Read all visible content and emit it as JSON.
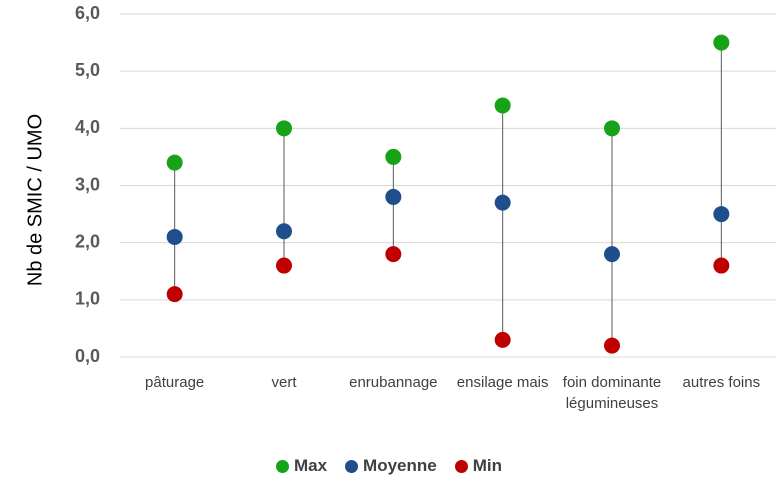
{
  "chart_data": {
    "type": "dot",
    "y_label": "Nb de SMIC / UMO",
    "categories": [
      "pâturage",
      "vert",
      "enrubannage",
      "ensilage mais",
      "foin dominante légumineuses",
      "autres foins"
    ],
    "series": [
      {
        "name": "Max",
        "color": "#17a317",
        "values": [
          3.4,
          4.0,
          3.5,
          4.4,
          4.0,
          5.5
        ]
      },
      {
        "name": "Moyenne",
        "color": "#1f4e8c",
        "values": [
          2.1,
          2.2,
          2.8,
          2.7,
          1.8,
          2.5
        ]
      },
      {
        "name": "Min",
        "color": "#c00000",
        "values": [
          1.1,
          1.6,
          1.8,
          0.3,
          0.2,
          1.6
        ]
      }
    ],
    "ylim": [
      0,
      6
    ],
    "yticks": [
      {
        "value": 0,
        "label": "0,0"
      },
      {
        "value": 1,
        "label": "1,0"
      },
      {
        "value": 2,
        "label": "2,0"
      },
      {
        "value": 3,
        "label": "3,0"
      },
      {
        "value": 4,
        "label": "4,0"
      },
      {
        "value": 5,
        "label": "5,0"
      },
      {
        "value": 6,
        "label": "6,0"
      }
    ],
    "grid": true
  }
}
